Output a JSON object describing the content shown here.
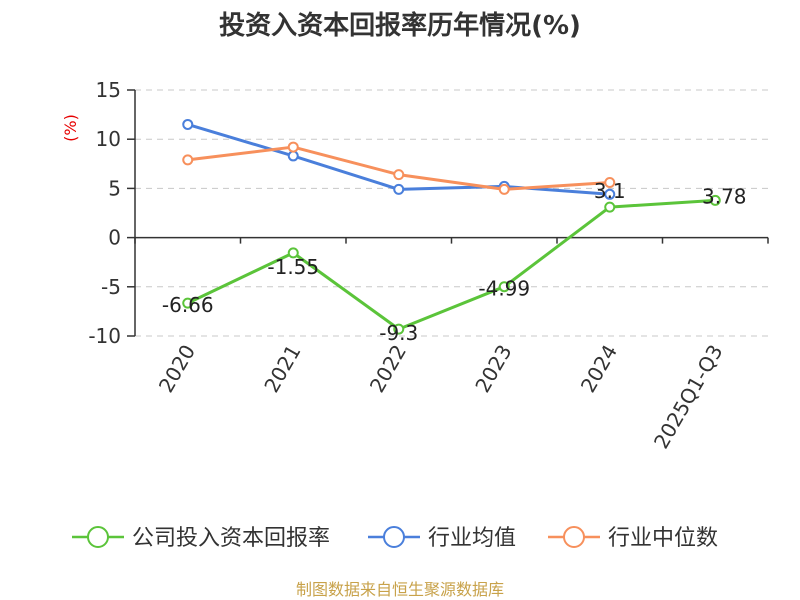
{
  "chart_data": {
    "type": "line",
    "title": "投资入资本回报率历年情况(%)",
    "ylabel": "(%)",
    "categories": [
      "2020",
      "2021",
      "2022",
      "2023",
      "2024",
      "2025Q1-Q3"
    ],
    "ylim": [
      -10,
      15
    ],
    "yticks": [
      15,
      10,
      5,
      0,
      -5,
      -10
    ],
    "grid": true,
    "legend_position": "bottom",
    "series": [
      {
        "name": "公司投入资本回报率",
        "color": "#5bc43a",
        "values": [
          -6.66,
          -1.55,
          -9.3,
          -4.99,
          3.1,
          3.78
        ],
        "labels": [
          "-6.66",
          "-1.55",
          "-9.3",
          "-4.99",
          "3.1",
          "3.78"
        ]
      },
      {
        "name": "行业均值",
        "color": "#4a7fdb",
        "values": [
          11.5,
          8.3,
          4.9,
          5.2,
          4.4,
          null
        ]
      },
      {
        "name": "行业中位数",
        "color": "#f7905c",
        "values": [
          7.9,
          9.2,
          6.4,
          4.9,
          5.6,
          null
        ]
      }
    ]
  },
  "source_note": "制图数据来自恒生聚源数据库"
}
